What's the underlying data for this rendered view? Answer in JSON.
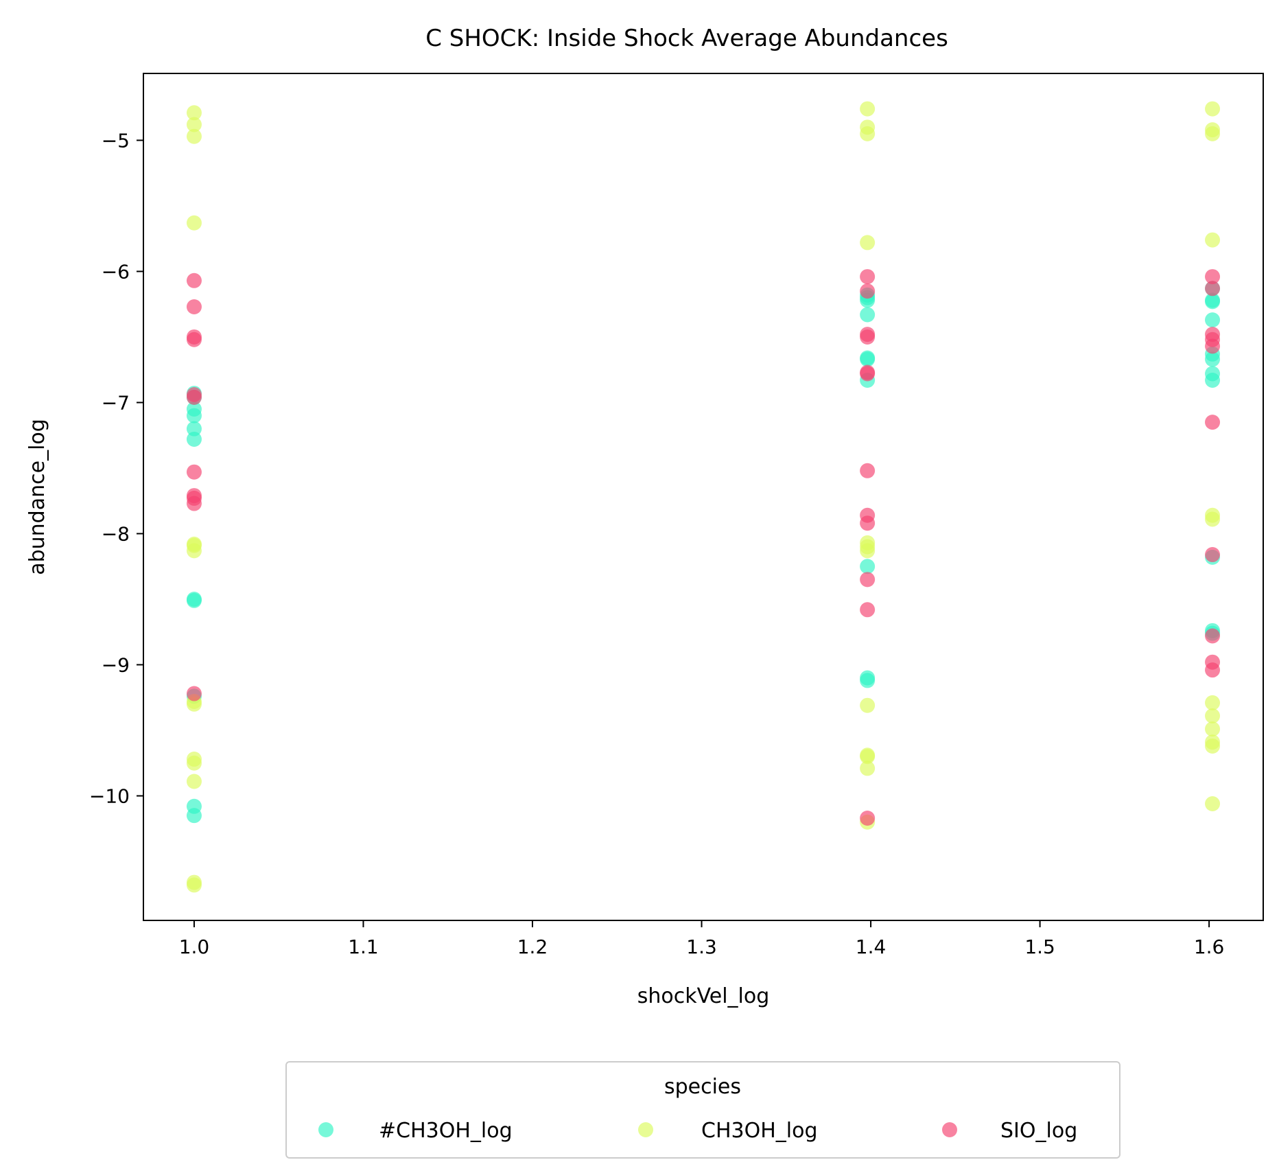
{
  "chart_data": {
    "type": "scatter",
    "title": "C SHOCK: Inside Shock Average Abundances",
    "xlabel": "shockVel_log",
    "ylabel": "abundance_log",
    "xlim": [
      0.97,
      1.632
    ],
    "ylim": [
      -10.95,
      -4.49
    ],
    "x_ticks": [
      1.0,
      1.1,
      1.2,
      1.3,
      1.4,
      1.5,
      1.6
    ],
    "x_tick_labels": [
      "1.0",
      "1.1",
      "1.2",
      "1.3",
      "1.4",
      "1.5",
      "1.6"
    ],
    "y_ticks": [
      -10,
      -9,
      -8,
      -7,
      -6,
      -5
    ],
    "y_tick_labels": [
      "−10",
      "−9",
      "−8",
      "−7",
      "−6",
      "−5"
    ],
    "grid": false,
    "legend": {
      "title": "species",
      "placement": "below plot, centered, 3 columns"
    },
    "series": [
      {
        "name": "#CH3OH_log",
        "color": "#2ef5c5",
        "points": [
          [
            1.0,
            -6.93
          ],
          [
            1.0,
            -6.96
          ],
          [
            1.0,
            -7.05
          ],
          [
            1.0,
            -7.1
          ],
          [
            1.0,
            -7.2
          ],
          [
            1.0,
            -7.28
          ],
          [
            1.0,
            -8.5
          ],
          [
            1.0,
            -8.51
          ],
          [
            1.0,
            -9.24
          ],
          [
            1.0,
            -10.08
          ],
          [
            1.0,
            -10.15
          ],
          [
            1.398,
            -6.18
          ],
          [
            1.398,
            -6.2
          ],
          [
            1.398,
            -6.22
          ],
          [
            1.398,
            -6.33
          ],
          [
            1.398,
            -6.66
          ],
          [
            1.398,
            -6.67
          ],
          [
            1.398,
            -6.83
          ],
          [
            1.398,
            -8.25
          ],
          [
            1.398,
            -9.1
          ],
          [
            1.398,
            -9.12
          ],
          [
            1.602,
            -6.13
          ],
          [
            1.602,
            -6.22
          ],
          [
            1.602,
            -6.23
          ],
          [
            1.602,
            -6.37
          ],
          [
            1.602,
            -6.63
          ],
          [
            1.602,
            -6.67
          ],
          [
            1.602,
            -6.78
          ],
          [
            1.602,
            -6.83
          ],
          [
            1.602,
            -8.18
          ],
          [
            1.602,
            -8.74
          ],
          [
            1.602,
            -8.76
          ]
        ]
      },
      {
        "name": "CH3OH_log",
        "color": "#dcfa5a",
        "points": [
          [
            1.0,
            -4.79
          ],
          [
            1.0,
            -4.88
          ],
          [
            1.0,
            -4.97
          ],
          [
            1.0,
            -5.63
          ],
          [
            1.0,
            -8.08
          ],
          [
            1.0,
            -8.09
          ],
          [
            1.0,
            -8.13
          ],
          [
            1.0,
            -9.28
          ],
          [
            1.0,
            -9.3
          ],
          [
            1.0,
            -9.72
          ],
          [
            1.0,
            -9.75
          ],
          [
            1.0,
            -9.89
          ],
          [
            1.0,
            -10.66
          ],
          [
            1.0,
            -10.68
          ],
          [
            1.398,
            -4.76
          ],
          [
            1.398,
            -4.9
          ],
          [
            1.398,
            -4.95
          ],
          [
            1.398,
            -5.78
          ],
          [
            1.398,
            -8.07
          ],
          [
            1.398,
            -8.1
          ],
          [
            1.398,
            -8.13
          ],
          [
            1.398,
            -9.31
          ],
          [
            1.398,
            -9.69
          ],
          [
            1.398,
            -9.7
          ],
          [
            1.398,
            -9.79
          ],
          [
            1.398,
            -10.2
          ],
          [
            1.602,
            -4.76
          ],
          [
            1.602,
            -4.92
          ],
          [
            1.602,
            -4.95
          ],
          [
            1.602,
            -5.76
          ],
          [
            1.602,
            -7.86
          ],
          [
            1.602,
            -7.89
          ],
          [
            1.602,
            -9.29
          ],
          [
            1.602,
            -9.39
          ],
          [
            1.602,
            -9.49
          ],
          [
            1.602,
            -9.59
          ],
          [
            1.602,
            -9.62
          ],
          [
            1.602,
            -10.06
          ]
        ]
      },
      {
        "name": "SIO_log",
        "color": "#f5406e",
        "points": [
          [
            1.0,
            -6.07
          ],
          [
            1.0,
            -6.27
          ],
          [
            1.0,
            -6.5
          ],
          [
            1.0,
            -6.52
          ],
          [
            1.0,
            -6.94
          ],
          [
            1.0,
            -6.96
          ],
          [
            1.0,
            -7.53
          ],
          [
            1.0,
            -7.71
          ],
          [
            1.0,
            -7.73
          ],
          [
            1.0,
            -7.77
          ],
          [
            1.0,
            -9.22
          ],
          [
            1.398,
            -6.04
          ],
          [
            1.398,
            -6.15
          ],
          [
            1.398,
            -6.48
          ],
          [
            1.398,
            -6.5
          ],
          [
            1.398,
            -6.77
          ],
          [
            1.398,
            -6.78
          ],
          [
            1.398,
            -7.52
          ],
          [
            1.398,
            -7.86
          ],
          [
            1.398,
            -7.92
          ],
          [
            1.398,
            -8.35
          ],
          [
            1.398,
            -8.58
          ],
          [
            1.398,
            -10.17
          ],
          [
            1.602,
            -6.04
          ],
          [
            1.602,
            -6.13
          ],
          [
            1.602,
            -6.48
          ],
          [
            1.602,
            -6.52
          ],
          [
            1.602,
            -6.57
          ],
          [
            1.602,
            -7.15
          ],
          [
            1.602,
            -8.16
          ],
          [
            1.602,
            -8.78
          ],
          [
            1.602,
            -8.98
          ],
          [
            1.602,
            -9.04
          ]
        ]
      }
    ]
  }
}
